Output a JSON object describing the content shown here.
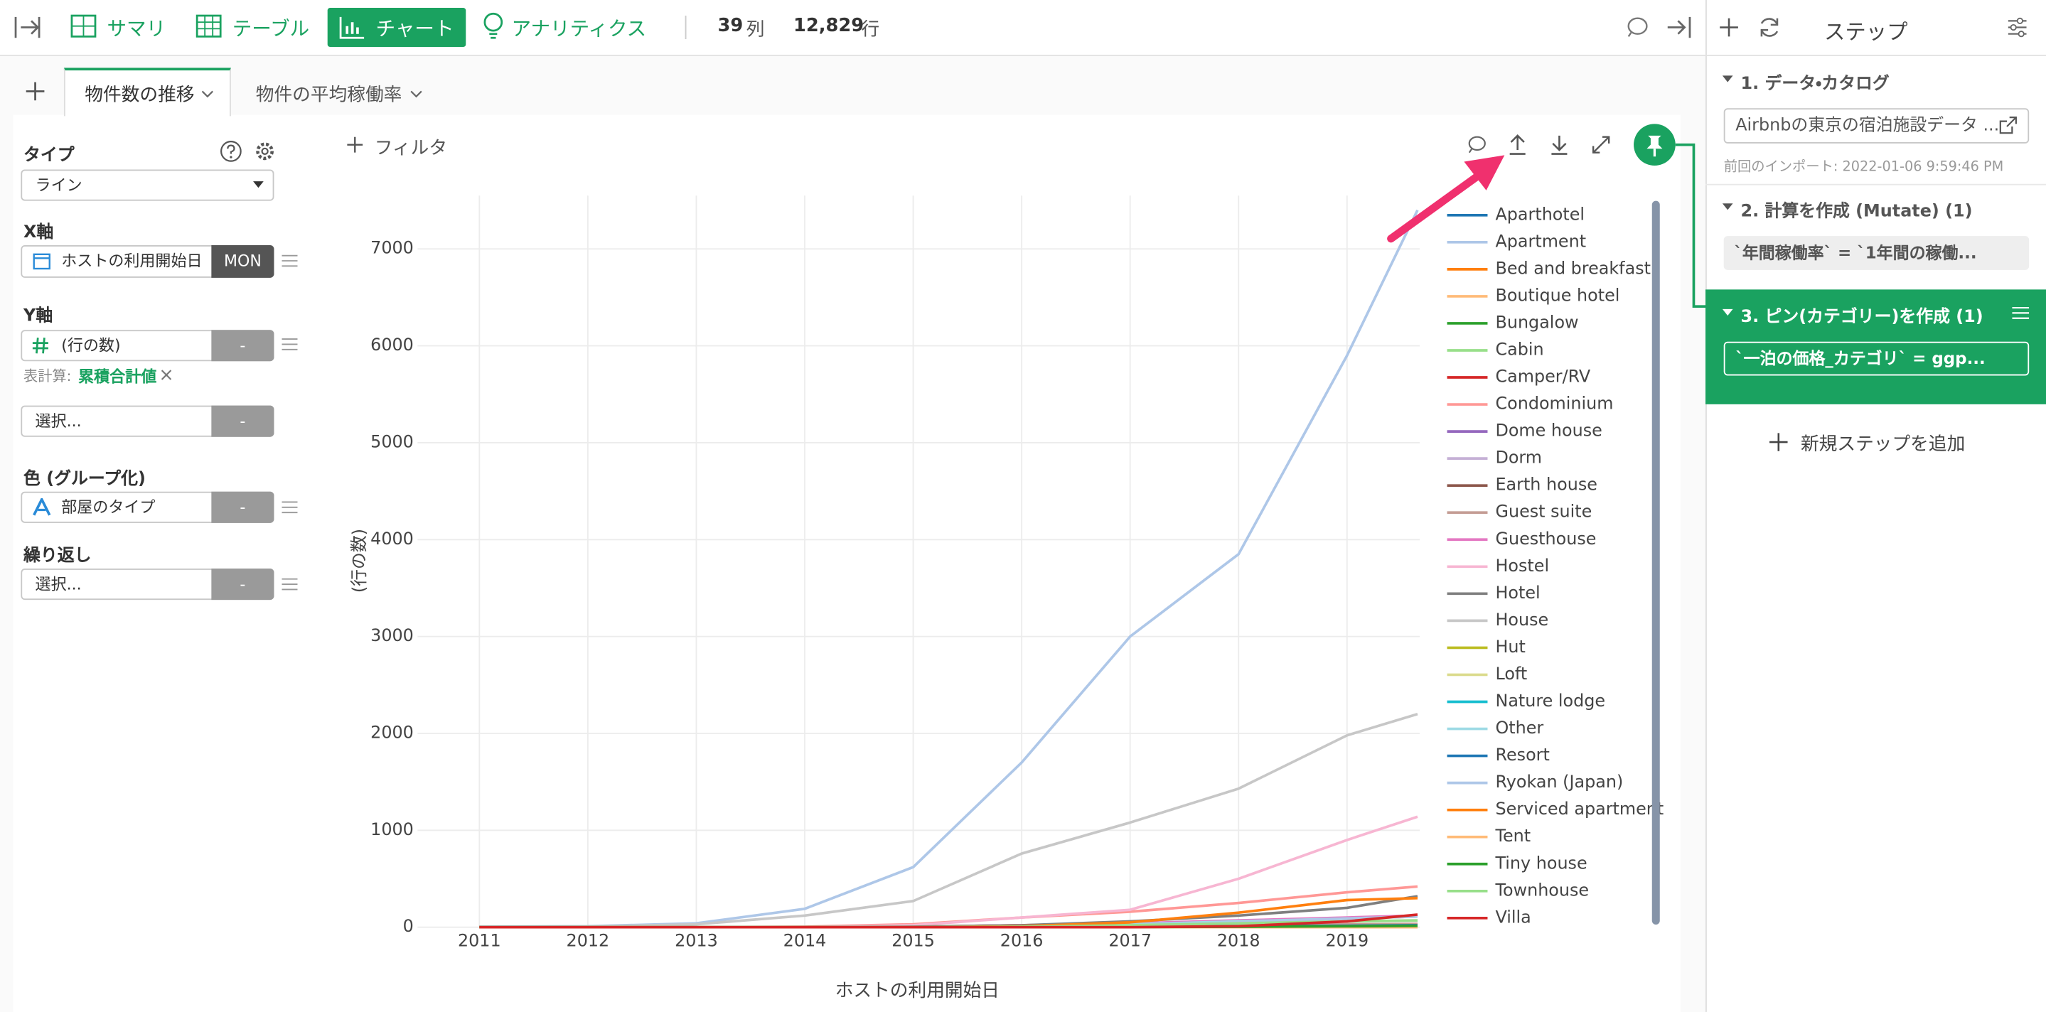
{
  "toolbar": {
    "tabs": [
      "サマリ",
      "テーブル",
      "チャート",
      "アナリティクス"
    ],
    "columns": "39",
    "columns_unit": "列",
    "rows": "12,829",
    "rows_unit": "行"
  },
  "chart_tabs": [
    "物件数の推移",
    "物件の平均稼働率"
  ],
  "config": {
    "type_label": "タイプ",
    "type_value": "ライン",
    "x_label": "X軸",
    "x_value": "ホストの利用開始日",
    "x_unit": "MON",
    "y_label": "Y軸",
    "y_value": "(行の数)",
    "y_agg": "-",
    "calc_label": "表計算:",
    "calc_value": "累積合計値",
    "select1": "選択...",
    "select1_agg": "-",
    "color_label": "色 (グループ化)",
    "color_value": "部屋のタイプ",
    "color_agg": "-",
    "repeat_label": "繰り返し",
    "repeat_value": "選択...",
    "repeat_agg": "-"
  },
  "filter": "フィルタ",
  "steps": {
    "title": "ステップ",
    "items": [
      {
        "title": "1. データ・カタログ",
        "body": "Airbnbの東京の宿泊施設データ ...",
        "note": "前回のインポート: 2022-01-06 9:59:46 PM"
      },
      {
        "title": "2. 計算を作成 (Mutate) (1)",
        "body": "`年間稼働率` = `1年間の稼働..."
      },
      {
        "title": "3. ピン(カテゴリー)を作成 (1)",
        "body": "`一泊の価格_カテゴリ` = ggp..."
      }
    ],
    "add": "新規ステップを追加"
  },
  "chart_data": {
    "type": "line",
    "x_label": "ホストの利用開始日",
    "y_label": "(行の数)",
    "x": [
      2011,
      2012,
      2013,
      2014,
      2015,
      2016,
      2017,
      2018,
      2019,
      2019.65
    ],
    "xlim": [
      2010.43,
      2019.67
    ],
    "xticks": [
      2011,
      2012,
      2013,
      2014,
      2015,
      2016,
      2017,
      2018,
      2019
    ],
    "ylim": [
      0,
      7550
    ],
    "yticks": [
      0,
      1000,
      2000,
      3000,
      4000,
      5000,
      6000,
      7000
    ],
    "grid": true,
    "series": [
      {
        "name": "Aparthotel",
        "color": "#1f77b4",
        "values": [
          0,
          0,
          0,
          0,
          0,
          0,
          0,
          0,
          2,
          4
        ]
      },
      {
        "name": "Apartment",
        "color": "#aec7e8",
        "values": [
          5,
          10,
          40,
          190,
          620,
          1700,
          3000,
          3850,
          5900,
          7400
        ]
      },
      {
        "name": "Bed and breakfast",
        "color": "#ff7f0e",
        "values": [
          0,
          0,
          0,
          0,
          5,
          20,
          40,
          60,
          90,
          110
        ]
      },
      {
        "name": "Boutique hotel",
        "color": "#ffbb78",
        "values": [
          0,
          0,
          0,
          0,
          0,
          0,
          5,
          10,
          20,
          30
        ]
      },
      {
        "name": "Bungalow",
        "color": "#2ca02c",
        "values": [
          0,
          0,
          0,
          0,
          0,
          0,
          0,
          0,
          0,
          0
        ]
      },
      {
        "name": "Cabin",
        "color": "#98df8a",
        "values": [
          0,
          0,
          0,
          0,
          0,
          0,
          0,
          0,
          2,
          3
        ]
      },
      {
        "name": "Camper/RV",
        "color": "#d62728",
        "values": [
          0,
          0,
          0,
          0,
          0,
          0,
          0,
          0,
          0,
          0
        ]
      },
      {
        "name": "Condominium",
        "color": "#ff9896",
        "values": [
          0,
          0,
          0,
          5,
          30,
          100,
          160,
          250,
          360,
          420
        ]
      },
      {
        "name": "Dome house",
        "color": "#9467bd",
        "values": [
          0,
          0,
          0,
          0,
          0,
          0,
          0,
          0,
          0,
          0
        ]
      },
      {
        "name": "Dorm",
        "color": "#c5b0d5",
        "values": [
          0,
          0,
          0,
          0,
          0,
          0,
          0,
          2,
          4,
          5
        ]
      },
      {
        "name": "Earth house",
        "color": "#8c564b",
        "values": [
          0,
          0,
          0,
          0,
          0,
          0,
          0,
          0,
          0,
          0
        ]
      },
      {
        "name": "Guest suite",
        "color": "#c49c94",
        "values": [
          0,
          0,
          0,
          0,
          0,
          5,
          10,
          20,
          30,
          35
        ]
      },
      {
        "name": "Guesthouse",
        "color": "#e377c2",
        "values": [
          0,
          0,
          0,
          0,
          5,
          20,
          40,
          70,
          100,
          120
        ]
      },
      {
        "name": "Hostel",
        "color": "#f7b6d2",
        "values": [
          0,
          0,
          0,
          0,
          20,
          100,
          180,
          500,
          900,
          1140
        ]
      },
      {
        "name": "Hotel",
        "color": "#7f7f7f",
        "values": [
          0,
          0,
          0,
          0,
          5,
          20,
          60,
          120,
          200,
          320
        ]
      },
      {
        "name": "House",
        "color": "#c7c7c7",
        "values": [
          2,
          5,
          30,
          120,
          270,
          760,
          1080,
          1430,
          1980,
          2200
        ]
      },
      {
        "name": "Hut",
        "color": "#bcbd22",
        "values": [
          0,
          0,
          0,
          0,
          0,
          0,
          0,
          0,
          0,
          0
        ]
      },
      {
        "name": "Loft",
        "color": "#dbdb8d",
        "values": [
          0,
          0,
          0,
          0,
          0,
          0,
          2,
          5,
          8,
          10
        ]
      },
      {
        "name": "Nature lodge",
        "color": "#17becf",
        "values": [
          0,
          0,
          0,
          0,
          0,
          0,
          0,
          0,
          0,
          0
        ]
      },
      {
        "name": "Other",
        "color": "#9edae5",
        "values": [
          0,
          0,
          0,
          0,
          0,
          10,
          30,
          60,
          90,
          110
        ]
      },
      {
        "name": "Resort",
        "color": "#1f77b4",
        "values": [
          0,
          0,
          0,
          0,
          0,
          0,
          5,
          10,
          15,
          20
        ]
      },
      {
        "name": "Ryokan (Japan)",
        "color": "#aec7e8",
        "values": [
          0,
          0,
          0,
          0,
          0,
          5,
          20,
          50,
          90,
          110
        ]
      },
      {
        "name": "Serviced apartment",
        "color": "#ff7f0e",
        "values": [
          0,
          0,
          0,
          0,
          0,
          10,
          50,
          150,
          280,
          300
        ]
      },
      {
        "name": "Tent",
        "color": "#ffbb78",
        "values": [
          0,
          0,
          0,
          0,
          0,
          0,
          0,
          0,
          0,
          0
        ]
      },
      {
        "name": "Tiny house",
        "color": "#2ca02c",
        "values": [
          0,
          0,
          0,
          0,
          0,
          0,
          2,
          5,
          10,
          15
        ]
      },
      {
        "name": "Townhouse",
        "color": "#98df8a",
        "values": [
          0,
          0,
          0,
          0,
          0,
          5,
          20,
          40,
          60,
          70
        ]
      },
      {
        "name": "Villa",
        "color": "#d62728",
        "values": [
          0,
          0,
          0,
          0,
          0,
          0,
          0,
          10,
          60,
          130
        ]
      }
    ]
  }
}
